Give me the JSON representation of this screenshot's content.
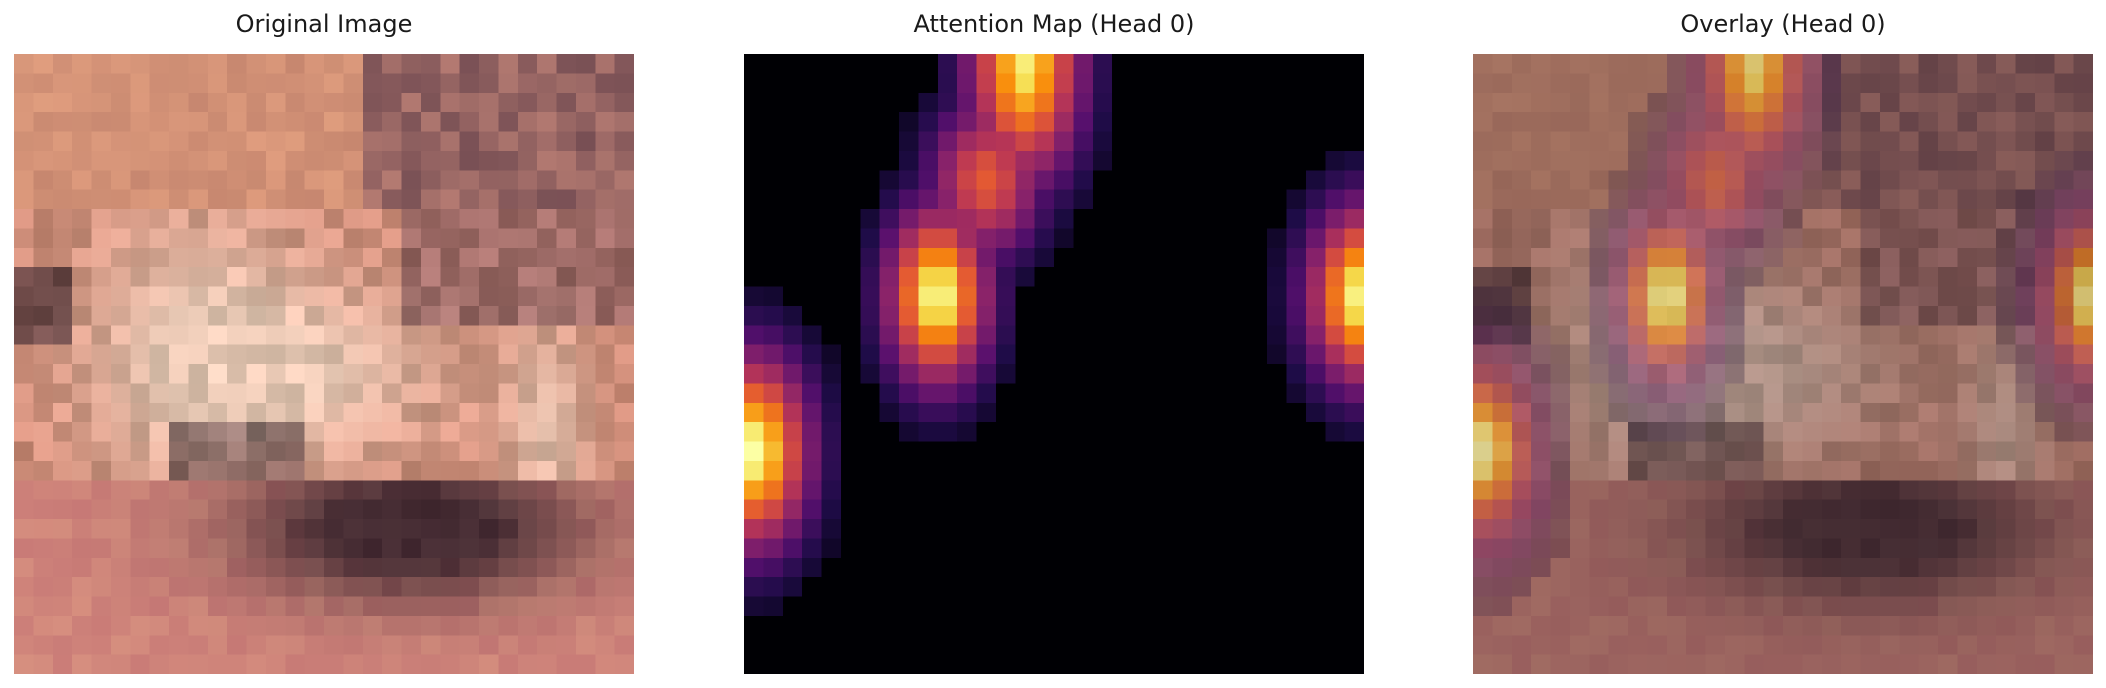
{
  "figure": {
    "panels": [
      {
        "title": "Original Image"
      },
      {
        "title": "Attention Map (Head 0)"
      },
      {
        "title": "Overlay (Head 0)"
      }
    ]
  },
  "colors": {
    "background": "#ffffff",
    "attention_colormap": "inferno",
    "image_dominant": "#c98570",
    "image_dark": "#2a1a22"
  }
}
